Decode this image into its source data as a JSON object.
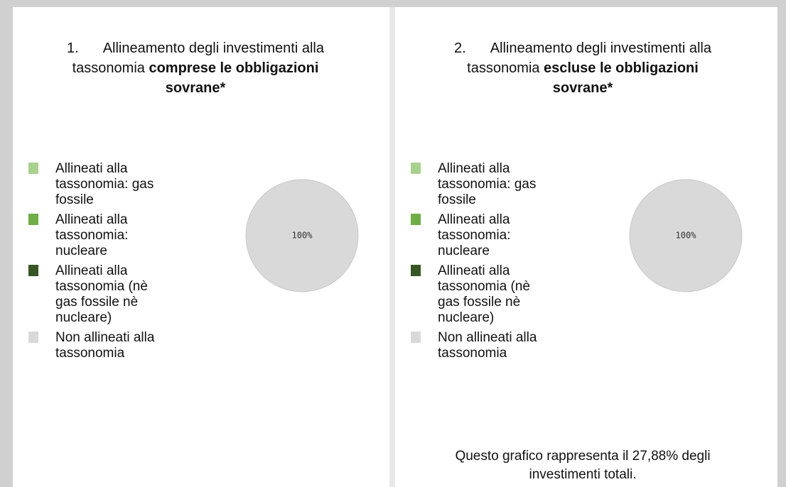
{
  "chart_data": [
    {
      "type": "pie",
      "number": "1.",
      "title": "Allineamento degli investimenti alla tassonomia",
      "title_emphasis": "comprese le obbligazioni sovrane*",
      "categories": [
        "Allineati alla tassonomia: gas fossile",
        "Allineati alla tassonomia: nucleare",
        "Allineati alla tassonomia (nè gas fossile nè nucleare)",
        "Non allineati alla tassonomia"
      ],
      "values": [
        0,
        0,
        0,
        100
      ],
      "value_labels": [
        null,
        null,
        null,
        "100%"
      ],
      "colors": [
        "#a9d18e",
        "#70ad47",
        "#375623",
        "#d9d9d9"
      ]
    },
    {
      "type": "pie",
      "number": "2.",
      "title": "Allineamento degli investimenti alla tassonomia",
      "title_emphasis": "escluse le obbligazioni sovrane*",
      "categories": [
        "Allineati alla tassonomia: gas fossile",
        "Allineati alla tassonomia: nucleare",
        "Allineati alla tassonomia (nè gas fossile nè nucleare)",
        "Non allineati alla tassonomia"
      ],
      "values": [
        0,
        0,
        0,
        100
      ],
      "value_labels": [
        null,
        null,
        null,
        "100%"
      ],
      "colors": [
        "#a9d18e",
        "#70ad47",
        "#375623",
        "#d9d9d9"
      ],
      "note": "Questo grafico rappresenta il 27,88% degli investimenti totali."
    }
  ]
}
